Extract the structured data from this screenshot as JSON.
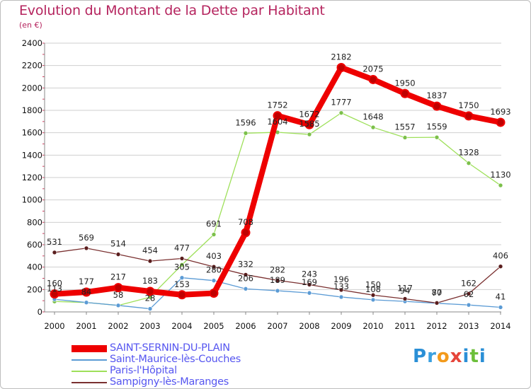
{
  "title": "Evolution du Montant de la Dette par Habitant",
  "subtitle": "(en €)",
  "logo": "Proxiti",
  "colors": {
    "title": "#b5245e",
    "legend_text": "#5656f0",
    "grid": "#cfcfcf"
  },
  "chart_data": {
    "type": "line",
    "title": "Evolution du Montant de la Dette par Habitant",
    "ylabel": "(en €)",
    "x": [
      "2000",
      "2001",
      "2002",
      "2003",
      "2004",
      "2005",
      "2006",
      "2007",
      "2008",
      "2009",
      "2010",
      "2011",
      "2012",
      "2013",
      "2014"
    ],
    "ylim": [
      0,
      2400
    ],
    "yticks": [
      0,
      200,
      400,
      600,
      800,
      1000,
      1200,
      1400,
      1600,
      1800,
      2000,
      2200,
      2400
    ],
    "grid": "horizontal",
    "legend_position": "bottom-left",
    "series": [
      {
        "name": "SAINT-SERNIN-DU-PLAIN",
        "color": "#ee0000",
        "point_color": "#c00000",
        "values": [
          160,
          177,
          217,
          183,
          153,
          167,
          708,
          1752,
          1672,
          2182,
          2075,
          1950,
          1837,
          1750,
          1693
        ],
        "labels": [
          "160",
          "177",
          "217",
          "183",
          "153",
          "",
          "708",
          "1752",
          "1672",
          "2182",
          "2075",
          "1950",
          "1837",
          "1750",
          "1693"
        ]
      },
      {
        "name": "Saint-Maurice-lès-Couches",
        "color": "#5b9bd5",
        "point_color": "#5b9bd5",
        "values": [
          113,
          84,
          58,
          28,
          305,
          280,
          206,
          189,
          169,
          133,
          108,
          94,
          77,
          62,
          41
        ],
        "labels": [
          "113",
          "84",
          "58",
          "28",
          "305",
          "280",
          "206",
          "189",
          "169",
          "133",
          "108",
          "94",
          "77",
          "62",
          "41"
        ]
      },
      {
        "name": "Paris-l'Hôpital",
        "color": "#9ee05a",
        "point_color": "#7cc04a",
        "values": [
          93,
          84,
          58,
          132,
          421,
          691,
          1596,
          1604,
          1585,
          1777,
          1648,
          1557,
          1559,
          1328,
          1130
        ],
        "labels": [
          "",
          "",
          "",
          "",
          "",
          "691",
          "1596",
          "1604",
          "1585",
          "1777",
          "1648",
          "1557",
          "1559",
          "1328",
          "1130"
        ]
      },
      {
        "name": "Sampigny-lès-Maranges",
        "color": "#7a3030",
        "point_color": "#5a1d1d",
        "values": [
          531,
          569,
          514,
          454,
          477,
          403,
          332,
          282,
          243,
          196,
          150,
          117,
          80,
          162,
          406
        ],
        "labels": [
          "531",
          "569",
          "514",
          "454",
          "477",
          "403",
          "332",
          "282",
          "243",
          "196",
          "150",
          "117",
          "80",
          "162",
          "406"
        ]
      }
    ]
  }
}
